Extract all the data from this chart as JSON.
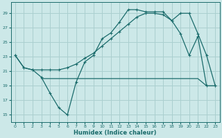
{
  "xlabel": "Humidex (Indice chaleur)",
  "xlim": [
    -0.5,
    23.5
  ],
  "ylim": [
    14,
    30.5
  ],
  "yticks": [
    15,
    17,
    19,
    21,
    23,
    25,
    27,
    29
  ],
  "xticks": [
    0,
    1,
    2,
    3,
    4,
    5,
    6,
    7,
    8,
    9,
    10,
    11,
    12,
    13,
    14,
    15,
    16,
    17,
    18,
    19,
    20,
    21,
    22,
    23
  ],
  "bg_color": "#cce8e8",
  "grid_color": "#aacfcf",
  "line_color": "#1a6b6b",
  "curve1_x": [
    0,
    1,
    2,
    3,
    4,
    5,
    6,
    7,
    8,
    9,
    10,
    11,
    12,
    13,
    14,
    15,
    16,
    17,
    18,
    19,
    20,
    21,
    22,
    23
  ],
  "curve1_y": [
    23.2,
    21.5,
    21.2,
    20.2,
    18.0,
    16.0,
    15.0,
    19.5,
    22.3,
    23.2,
    25.5,
    26.3,
    27.8,
    29.5,
    29.5,
    29.2,
    29.2,
    29.2,
    28.0,
    26.2,
    23.2,
    25.8,
    19.0,
    19.0
  ],
  "curve1_markers": [
    0,
    1,
    2,
    3,
    4,
    5,
    6,
    7,
    8,
    9,
    10,
    11,
    12,
    13,
    14,
    15,
    16,
    17,
    18,
    19,
    20,
    21,
    22,
    23
  ],
  "curve2_x": [
    0,
    1,
    2,
    3,
    4,
    5,
    6,
    7,
    8,
    9,
    10,
    11,
    12,
    13,
    14,
    15,
    16,
    17,
    18,
    19,
    20,
    21,
    22,
    23
  ],
  "curve2_y": [
    23.2,
    21.5,
    21.2,
    21.2,
    21.2,
    21.2,
    21.5,
    22.0,
    22.8,
    23.5,
    24.5,
    25.5,
    26.5,
    27.5,
    28.5,
    29.0,
    29.0,
    28.8,
    28.0,
    29.0,
    29.0,
    26.2,
    23.2,
    19.0
  ],
  "curve2_markers": [
    0,
    1,
    2,
    3,
    4,
    5,
    6,
    7,
    8,
    9,
    10,
    11,
    12,
    13,
    14,
    15,
    16,
    17,
    18,
    19,
    20,
    21,
    22,
    23
  ],
  "curve3_x": [
    3,
    4,
    5,
    6,
    7,
    8,
    9,
    10,
    11,
    12,
    13,
    14,
    15,
    16,
    17,
    18,
    19,
    20,
    21,
    22,
    23
  ],
  "curve3_y": [
    20.0,
    20.0,
    20.0,
    20.0,
    20.0,
    20.0,
    20.0,
    20.0,
    20.0,
    20.0,
    20.0,
    20.0,
    20.0,
    20.0,
    20.0,
    20.0,
    20.0,
    20.0,
    20.0,
    19.0,
    19.0
  ]
}
